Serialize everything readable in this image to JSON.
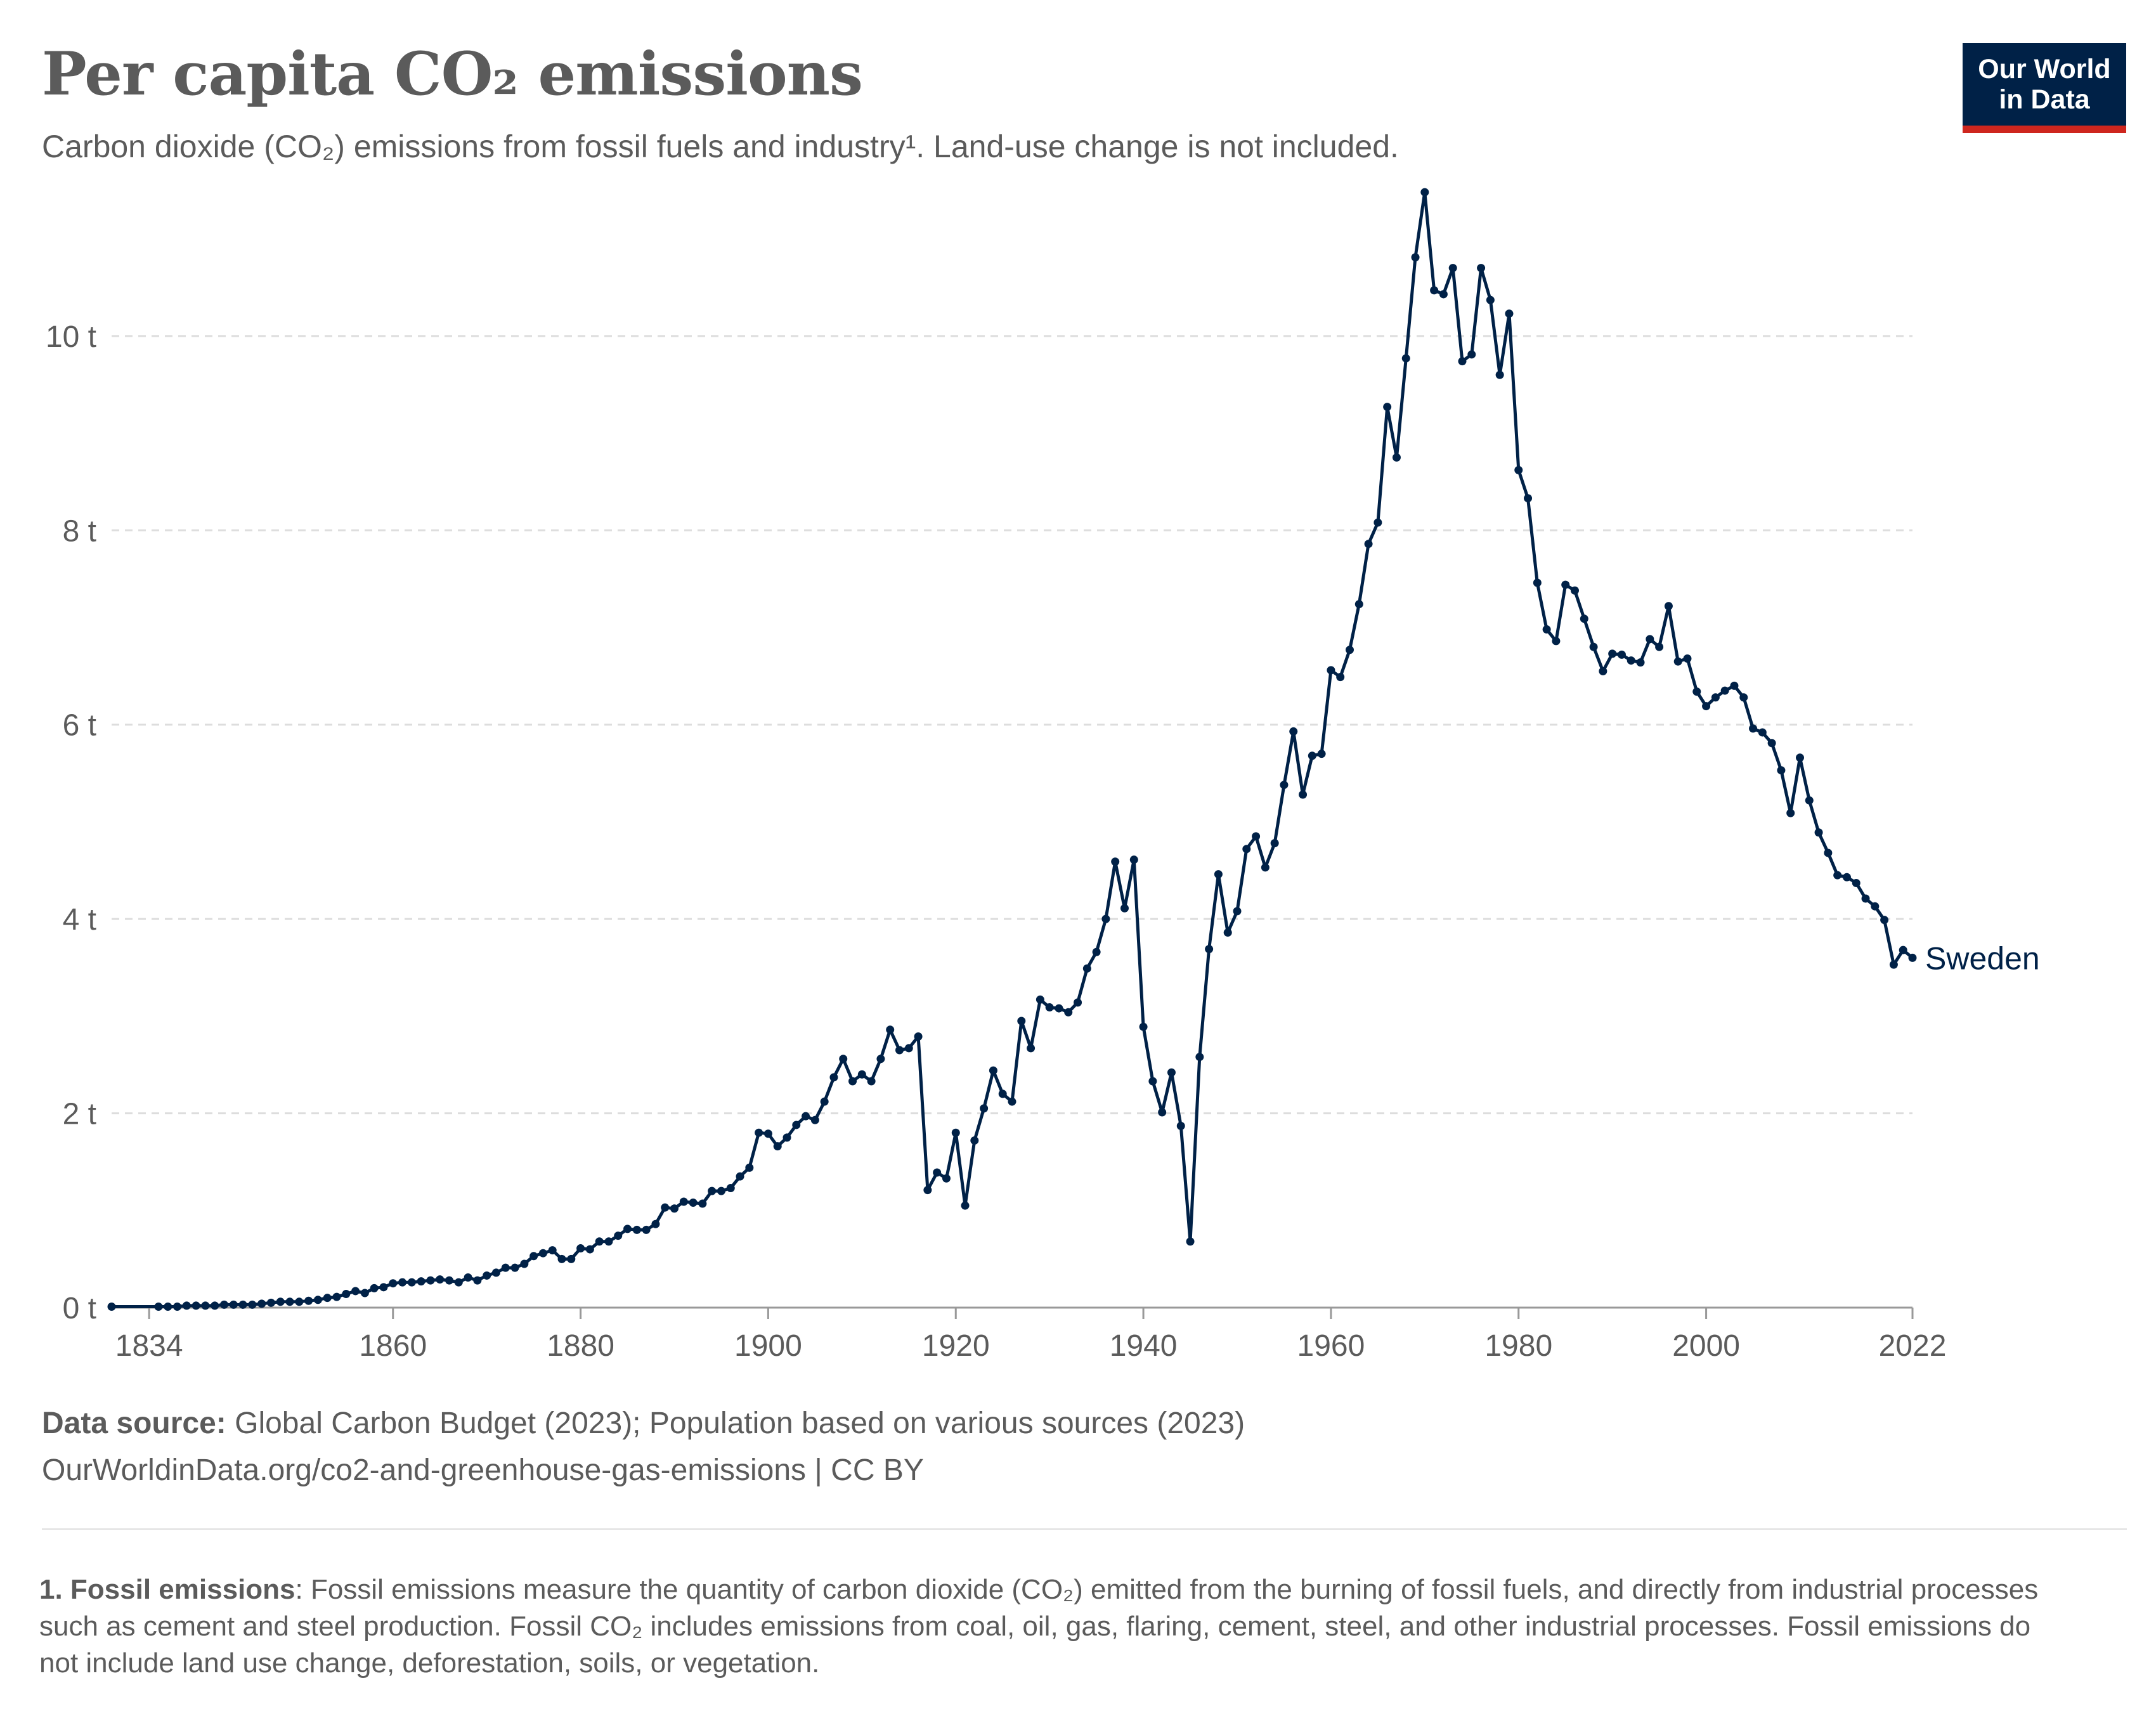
{
  "header": {
    "title": "Per capita CO₂ emissions",
    "subtitle": "Carbon dioxide (CO₂) emissions from fossil fuels and industry¹. Land-use change is not included.",
    "logo_line1": "Our World",
    "logo_line2": "in Data"
  },
  "footer": {
    "source_label": "Data source:",
    "source_text": " Global Carbon Budget (2023); Population based on various sources (2023)",
    "url_line": "OurWorldinData.org/co2-and-greenhouse-gas-emissions | CC BY",
    "footnote_label": "1. Fossil emissions",
    "footnote_text": ": Fossil emissions measure the quantity of carbon dioxide (CO₂) emitted from the burning of fossil fuels, and directly from industrial processes such as cement and steel production. Fossil CO₂ includes emissions from coal, oil, gas, flaring, cement, steel, and other industrial processes. Fossil emissions do not include land use change, deforestation, soils, or vegetation."
  },
  "colors": {
    "series": "#002147",
    "text": "#5b5b5b",
    "grid": "#dddddd",
    "axis": "#999999",
    "logo_bg": "#002147",
    "logo_accent": "#ce261e"
  },
  "chart_data": {
    "type": "line",
    "title": "Per capita CO₂ emissions",
    "xlabel": "",
    "ylabel": "",
    "xlim": [
      1830,
      2022
    ],
    "ylim": [
      0,
      11.5
    ],
    "x_ticks": [
      "1834",
      "1860",
      "1880",
      "1900",
      "1920",
      "1940",
      "1960",
      "1980",
      "2000",
      "2022"
    ],
    "y_ticks": [
      "0 t",
      "2 t",
      "4 t",
      "6 t",
      "8 t",
      "10 t"
    ],
    "grid": "horizontal dashed",
    "legend": "end-of-line label",
    "series": [
      {
        "name": "Sweden",
        "x": [
          1830,
          1835,
          1836,
          1837,
          1838,
          1839,
          1840,
          1841,
          1842,
          1843,
          1844,
          1845,
          1846,
          1847,
          1848,
          1849,
          1850,
          1851,
          1852,
          1853,
          1854,
          1855,
          1856,
          1857,
          1858,
          1859,
          1860,
          1861,
          1862,
          1863,
          1864,
          1865,
          1866,
          1867,
          1868,
          1869,
          1870,
          1871,
          1872,
          1873,
          1874,
          1875,
          1876,
          1877,
          1878,
          1879,
          1880,
          1881,
          1882,
          1883,
          1884,
          1885,
          1886,
          1887,
          1888,
          1889,
          1890,
          1891,
          1892,
          1893,
          1894,
          1895,
          1896,
          1897,
          1898,
          1899,
          1900,
          1901,
          1902,
          1903,
          1904,
          1905,
          1906,
          1907,
          1908,
          1909,
          1910,
          1911,
          1912,
          1913,
          1914,
          1915,
          1916,
          1917,
          1918,
          1919,
          1920,
          1921,
          1922,
          1923,
          1924,
          1925,
          1926,
          1927,
          1928,
          1929,
          1930,
          1931,
          1932,
          1933,
          1934,
          1935,
          1936,
          1937,
          1938,
          1939,
          1940,
          1941,
          1942,
          1943,
          1944,
          1945,
          1946,
          1947,
          1948,
          1949,
          1950,
          1951,
          1952,
          1953,
          1954,
          1955,
          1956,
          1957,
          1958,
          1959,
          1960,
          1961,
          1962,
          1963,
          1964,
          1965,
          1966,
          1967,
          1968,
          1969,
          1970,
          1971,
          1972,
          1973,
          1974,
          1975,
          1976,
          1977,
          1978,
          1979,
          1980,
          1981,
          1982,
          1983,
          1984,
          1985,
          1986,
          1987,
          1988,
          1989,
          1990,
          1991,
          1992,
          1993,
          1994,
          1995,
          1996,
          1997,
          1998,
          1999,
          2000,
          2001,
          2002,
          2003,
          2004,
          2005,
          2006,
          2007,
          2008,
          2009,
          2010,
          2011,
          2012,
          2013,
          2014,
          2015,
          2016,
          2017,
          2018,
          2019,
          2020,
          2021,
          2022
        ],
        "y": [
          0.01,
          0.01,
          0.01,
          0.01,
          0.02,
          0.02,
          0.02,
          0.02,
          0.03,
          0.03,
          0.03,
          0.03,
          0.04,
          0.05,
          0.06,
          0.06,
          0.06,
          0.07,
          0.08,
          0.1,
          0.11,
          0.14,
          0.17,
          0.15,
          0.2,
          0.21,
          0.25,
          0.26,
          0.26,
          0.27,
          0.28,
          0.29,
          0.28,
          0.26,
          0.31,
          0.28,
          0.33,
          0.36,
          0.41,
          0.41,
          0.45,
          0.53,
          0.56,
          0.59,
          0.5,
          0.5,
          0.61,
          0.6,
          0.68,
          0.68,
          0.74,
          0.81,
          0.8,
          0.8,
          0.86,
          1.03,
          1.02,
          1.09,
          1.08,
          1.07,
          1.2,
          1.2,
          1.23,
          1.35,
          1.44,
          1.8,
          1.79,
          1.66,
          1.75,
          1.88,
          1.97,
          1.93,
          2.12,
          2.37,
          2.56,
          2.33,
          2.4,
          2.33,
          2.56,
          2.86,
          2.65,
          2.67,
          2.79,
          1.21,
          1.39,
          1.33,
          1.8,
          1.05,
          1.72,
          2.05,
          2.44,
          2.2,
          2.12,
          2.95,
          2.67,
          3.17,
          3.09,
          3.08,
          3.04,
          3.14,
          3.49,
          3.66,
          4.0,
          4.59,
          4.11,
          4.61,
          2.89,
          2.33,
          2.01,
          2.42,
          1.87,
          0.68,
          2.58,
          3.69,
          4.46,
          3.86,
          4.08,
          4.72,
          4.85,
          4.53,
          4.78,
          5.38,
          5.93,
          5.28,
          5.68,
          5.7,
          6.56,
          6.49,
          6.77,
          7.24,
          7.86,
          8.08,
          9.27,
          8.75,
          9.77,
          10.81,
          11.48,
          10.47,
          10.43,
          10.7,
          9.74,
          9.81,
          10.7,
          10.37,
          9.6,
          10.23,
          8.62,
          8.33,
          7.46,
          6.98,
          6.86,
          7.44,
          7.38,
          7.09,
          6.8,
          6.55,
          6.73,
          6.72,
          6.66,
          6.64,
          6.88,
          6.8,
          7.22,
          6.65,
          6.68,
          6.34,
          6.19,
          6.28,
          6.35,
          6.4,
          6.28,
          5.96,
          5.92,
          5.81,
          5.53,
          5.09,
          5.66,
          5.22,
          4.89,
          4.68,
          4.45,
          4.43,
          4.37,
          4.21,
          4.13,
          3.99,
          3.53,
          3.68,
          3.6
        ]
      }
    ]
  }
}
